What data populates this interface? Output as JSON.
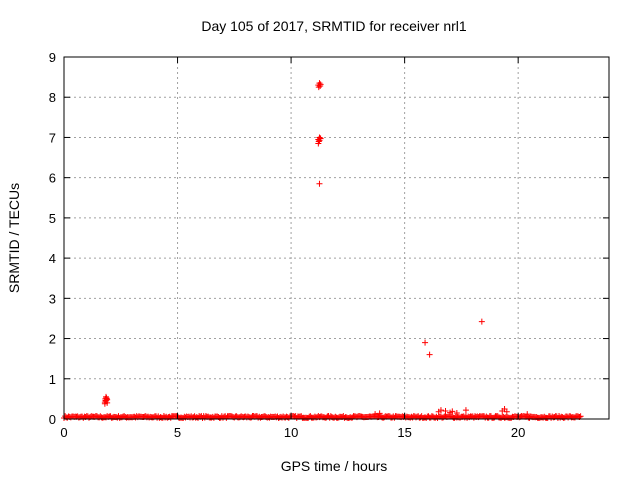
{
  "chart_data": {
    "type": "scatter",
    "title": "Day 105 of 2017, SRMTID for receiver nrl1",
    "xlabel": "GPS time / hours",
    "ylabel": "SRMTID / TECUs",
    "xlim": [
      0,
      24
    ],
    "ylim": [
      0,
      9
    ],
    "xticks": [
      0,
      5,
      10,
      15,
      20
    ],
    "yticks": [
      0,
      1,
      2,
      3,
      4,
      5,
      6,
      7,
      8,
      9
    ],
    "grid": true,
    "marker": "+",
    "color": "#ff0000",
    "baseline": {
      "x_start": 0.0,
      "x_end": 22.8,
      "x_step": 0.05,
      "typical_value": 0.05,
      "spread": 0.05
    },
    "x": [
      1.8,
      1.82,
      1.85,
      1.87,
      1.9,
      1.8,
      1.85,
      1.9,
      1.83,
      1.88,
      11.2,
      11.25,
      11.3,
      11.22,
      11.28,
      11.2,
      11.25,
      11.3,
      11.22,
      11.28,
      11.25,
      11.2,
      11.25,
      15.9,
      16.1,
      18.4,
      16.5,
      16.6,
      16.8,
      17.0,
      17.1,
      17.3,
      17.7,
      19.3,
      19.4,
      19.5,
      13.7,
      13.9,
      20.4
    ],
    "y": [
      0.42,
      0.5,
      0.45,
      0.52,
      0.48,
      0.38,
      0.55,
      0.4,
      0.46,
      0.5,
      8.3,
      8.35,
      8.32,
      8.25,
      8.28,
      6.95,
      7.0,
      6.97,
      6.9,
      6.98,
      6.92,
      6.85,
      5.85,
      1.9,
      1.6,
      2.42,
      0.18,
      0.22,
      0.2,
      0.16,
      0.19,
      0.15,
      0.22,
      0.2,
      0.25,
      0.18,
      0.12,
      0.14,
      0.12
    ]
  }
}
